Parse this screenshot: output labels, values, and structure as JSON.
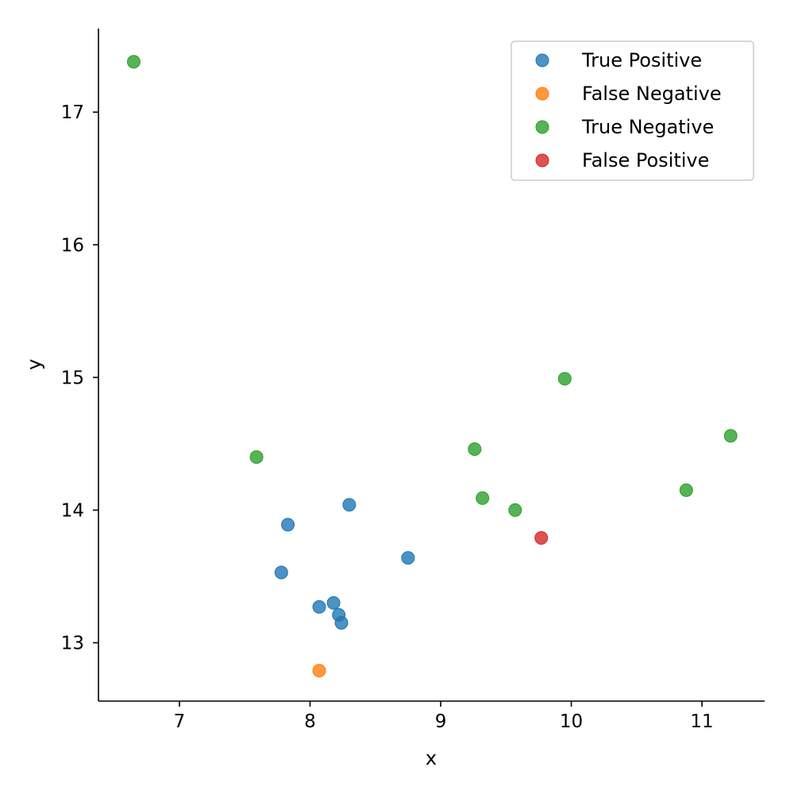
{
  "chart_data": {
    "type": "scatter",
    "title": "",
    "xlabel": "x",
    "ylabel": "y",
    "xlim": [
      6.38,
      11.48
    ],
    "ylim": [
      12.56,
      17.63
    ],
    "xticks": [
      7,
      8,
      9,
      10,
      11
    ],
    "yticks": [
      13,
      14,
      15,
      16,
      17
    ],
    "grid": false,
    "legend_position": "top-right",
    "series": [
      {
        "name": "True Positive",
        "color": "#1f77b4",
        "points": [
          {
            "x": 7.78,
            "y": 13.53
          },
          {
            "x": 7.83,
            "y": 13.89
          },
          {
            "x": 8.07,
            "y": 13.27
          },
          {
            "x": 8.18,
            "y": 13.3
          },
          {
            "x": 8.22,
            "y": 13.21
          },
          {
            "x": 8.24,
            "y": 13.15
          },
          {
            "x": 8.3,
            "y": 14.04
          },
          {
            "x": 8.75,
            "y": 13.64
          }
        ]
      },
      {
        "name": "False Negative",
        "color": "#ff7f0e",
        "points": [
          {
            "x": 8.07,
            "y": 12.79
          }
        ]
      },
      {
        "name": "True Negative",
        "color": "#2ca02c",
        "points": [
          {
            "x": 6.65,
            "y": 17.38
          },
          {
            "x": 7.59,
            "y": 14.4
          },
          {
            "x": 9.26,
            "y": 14.46
          },
          {
            "x": 9.32,
            "y": 14.09
          },
          {
            "x": 9.57,
            "y": 14.0
          },
          {
            "x": 9.95,
            "y": 14.99
          },
          {
            "x": 10.88,
            "y": 14.15
          },
          {
            "x": 11.22,
            "y": 14.56
          }
        ]
      },
      {
        "name": "False Positive",
        "color": "#d62728",
        "points": [
          {
            "x": 9.77,
            "y": 13.79
          }
        ]
      }
    ]
  }
}
